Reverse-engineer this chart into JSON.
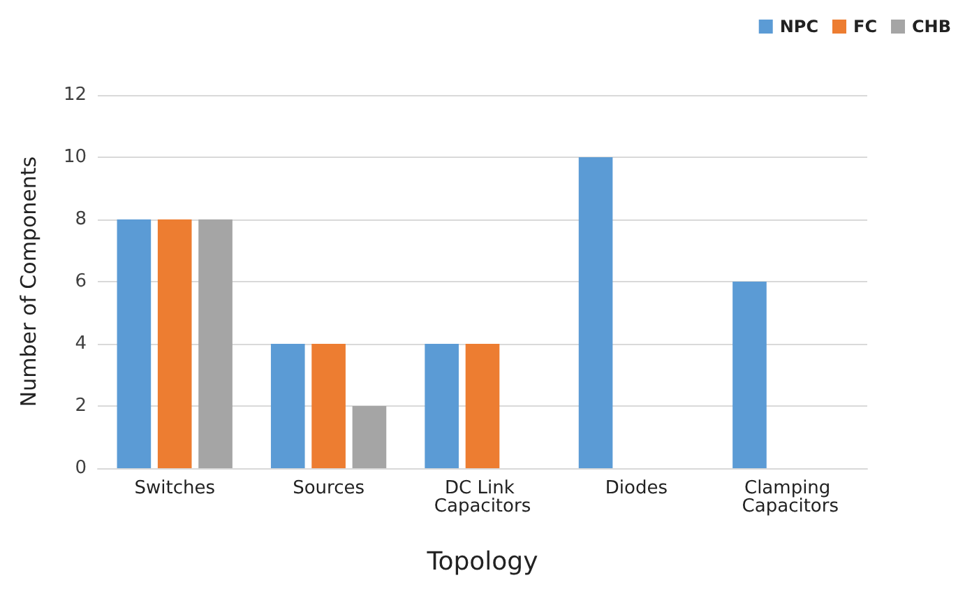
{
  "chart_data": {
    "type": "bar",
    "xlabel": "Topology",
    "ylabel": "Number of Components",
    "categories": [
      "Switches",
      "Sources",
      "DC Link Capacitors",
      "Diodes",
      "Clamping Capacitors"
    ],
    "series": [
      {
        "name": "NPC",
        "color": "#5b9bd5",
        "values": [
          8,
          4,
          4,
          10,
          6
        ]
      },
      {
        "name": "FC",
        "color": "#ed7d31",
        "values": [
          8,
          4,
          4,
          0,
          0
        ]
      },
      {
        "name": "CHB",
        "color": "#a5a5a5",
        "values": [
          8,
          2,
          0,
          0,
          0
        ]
      }
    ],
    "ylim": [
      0,
      12
    ],
    "yticks": [
      0,
      2,
      4,
      6,
      8,
      10,
      12
    ],
    "grid": "y",
    "legend": "top right"
  }
}
